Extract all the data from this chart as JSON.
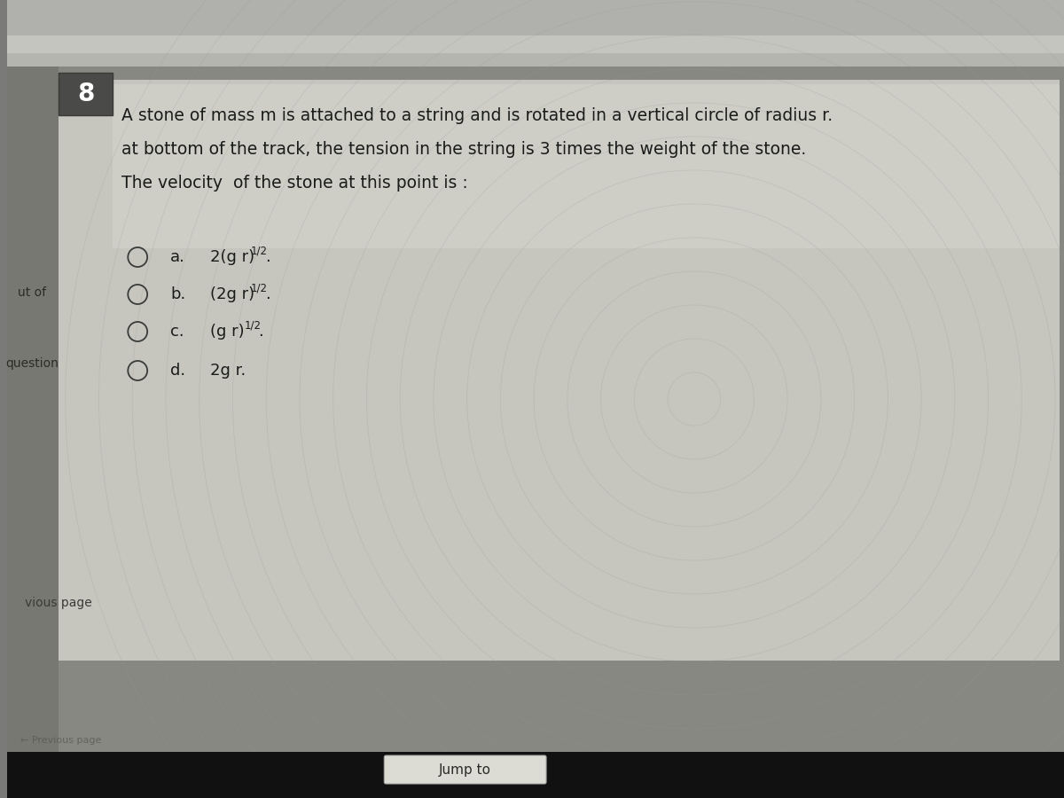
{
  "question_number": "8",
  "question_text_line1": "A stone of mass m is attached to a string and is rotated in a vertical circle of radius r.",
  "question_text_line2": "at bottom of the track, the tension in the string is 3 times the weight of the stone.",
  "question_text_line3": "The velocity  of the stone at this point is :",
  "options": [
    {
      "label": "a.",
      "text": "2(g r)",
      "superscript": "1/2",
      "suffix": "."
    },
    {
      "label": "b.",
      "text": "(2g r)",
      "superscript": "1/2",
      "suffix": "."
    },
    {
      "label": "c.",
      "text": "(g r)",
      "superscript": "1/2",
      "suffix": "."
    },
    {
      "label": "d.",
      "text": "2g r.",
      "superscript": "",
      "suffix": ""
    }
  ],
  "left_label_utof": "ut of",
  "left_label_question": "question",
  "bottom_label_vious": "vious page",
  "bottom_label_jump": "Jump to",
  "bg_outer": "#7a7a78",
  "bg_top_strip": "#b8b8b4",
  "bg_top_strip2": "#c8c8c4",
  "bg_content": "#cdd0cc",
  "bg_content_light": "#d8dbd5",
  "text_dark": "#1a1c1a",
  "text_mid": "#3a3c3a",
  "circle_color": "#888a88",
  "num_box_bg": "#5a5a58",
  "bottom_bar": "#111111"
}
